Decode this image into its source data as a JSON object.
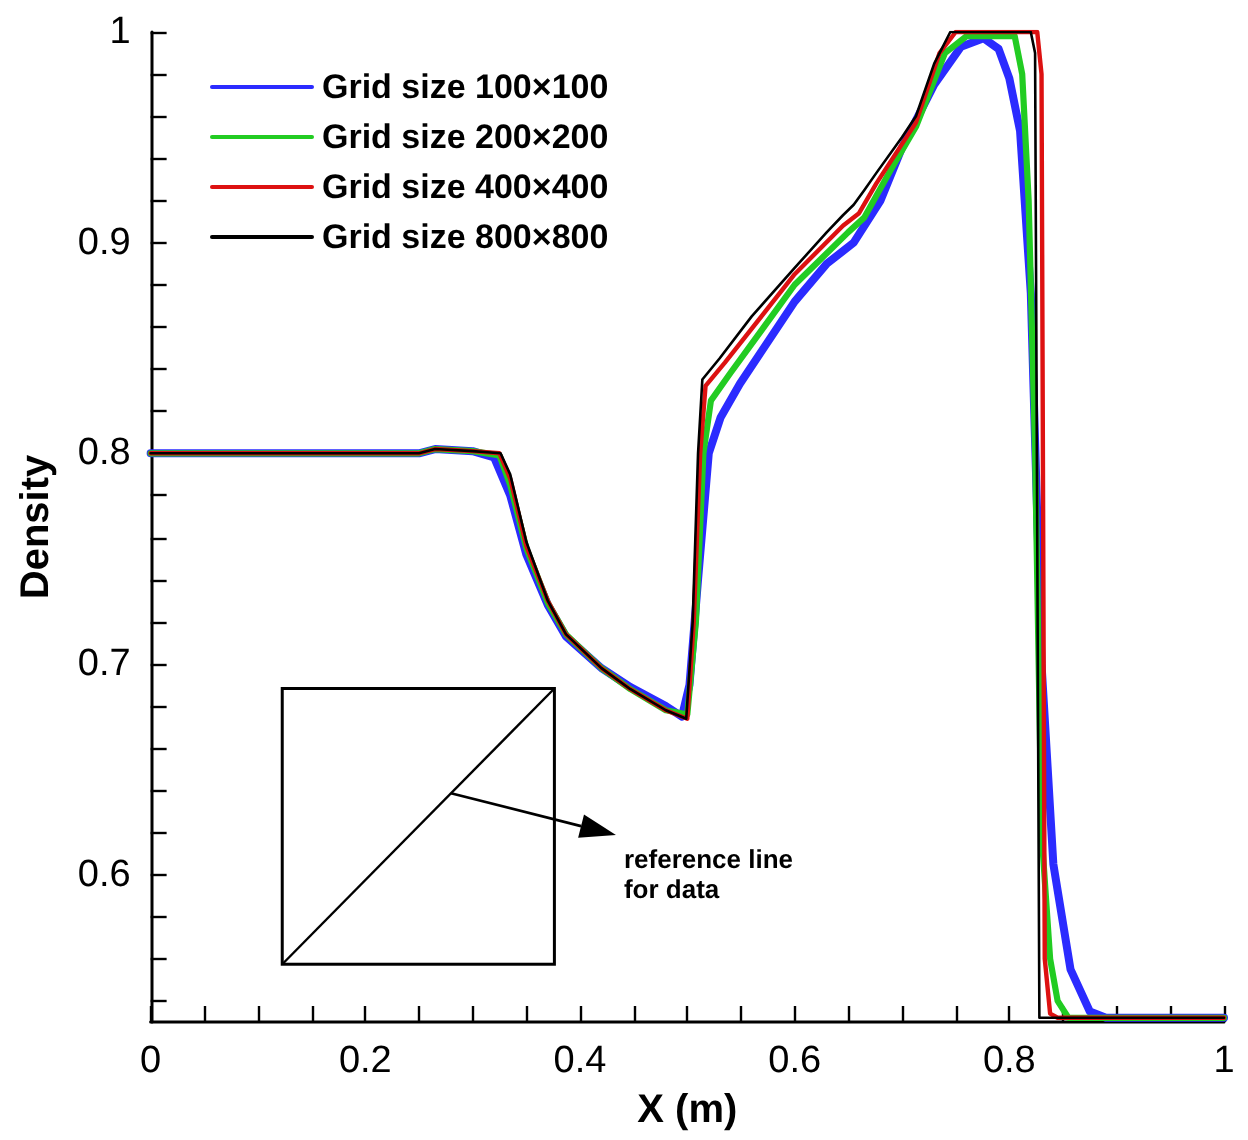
{
  "chart_data": {
    "type": "line",
    "xlabel": "X (m)",
    "ylabel": "Density",
    "annotations": [
      "reference line for data"
    ],
    "xlim": [
      0,
      1
    ],
    "xticks": [
      0,
      {
        "value": 0.05,
        "label": null
      },
      {
        "value": 0.1,
        "label": null
      },
      {
        "value": 0.15,
        "label": null
      },
      0.2,
      {
        "value": 0.25,
        "label": null
      },
      {
        "value": 0.3,
        "label": null
      },
      {
        "value": 0.35,
        "label": null
      },
      0.4,
      {
        "value": 0.45,
        "label": null
      },
      {
        "value": 0.5,
        "label": null
      },
      {
        "value": 0.55,
        "label": null
      },
      0.6,
      {
        "value": 0.65,
        "label": null
      },
      {
        "value": 0.7,
        "label": null
      },
      {
        "value": 0.75,
        "label": null
      },
      0.8,
      {
        "value": 0.85,
        "label": null
      },
      {
        "value": 0.9,
        "label": null
      },
      {
        "value": 0.95,
        "label": null
      },
      1
    ],
    "ylim": [
      0.53,
      1
    ],
    "yticks": [
      {
        "value": 0.54,
        "label": null
      },
      {
        "value": 0.56,
        "label": null
      },
      {
        "value": 0.58,
        "label": null
      },
      0.6,
      {
        "value": 0.62,
        "label": null
      },
      {
        "value": 0.64,
        "label": null
      },
      {
        "value": 0.66,
        "label": null
      },
      {
        "value": 0.68,
        "label": null
      },
      0.7,
      {
        "value": 0.72,
        "label": null
      },
      {
        "value": 0.74,
        "label": null
      },
      {
        "value": 0.76,
        "label": null
      },
      {
        "value": 0.78,
        "label": null
      },
      0.8,
      {
        "value": 0.82,
        "label": null
      },
      {
        "value": 0.84,
        "label": null
      },
      {
        "value": 0.86,
        "label": null
      },
      {
        "value": 0.88,
        "label": null
      },
      0.9,
      {
        "value": 0.92,
        "label": null
      },
      {
        "value": 0.94,
        "label": null
      },
      {
        "value": 0.96,
        "label": null
      },
      {
        "value": 0.98,
        "label": null
      },
      1
    ],
    "grid": false,
    "legend": "top left",
    "marker": "none",
    "line_style": "solid",
    "series": [
      {
        "name": "Grid size 100×100",
        "color": "#2b2bff",
        "x": [
          0,
          0.25,
          0.265,
          0.3,
          0.32,
          0.335,
          0.35,
          0.37,
          0.387,
          0.42,
          0.447,
          0.48,
          0.495,
          0.502,
          0.51,
          0.52,
          0.531,
          0.549,
          0.6,
          0.63,
          0.655,
          0.68,
          0.7,
          0.73,
          0.755,
          0.776,
          0.79,
          0.8,
          0.81,
          0.82,
          0.83,
          0.841,
          0.857,
          0.875,
          0.89,
          1
        ],
        "values": [
          0.8,
          0.8,
          0.802,
          0.801,
          0.798,
          0.78,
          0.752,
          0.728,
          0.713,
          0.698,
          0.689,
          0.68,
          0.675,
          0.69,
          0.74,
          0.8,
          0.817,
          0.833,
          0.872,
          0.89,
          0.9,
          0.92,
          0.945,
          0.975,
          0.993,
          0.997,
          0.992,
          0.978,
          0.953,
          0.876,
          0.7,
          0.605,
          0.555,
          0.535,
          0.532,
          0.532
        ]
      },
      {
        "name": "Grid size 200×200",
        "color": "#22cc22",
        "x": [
          0,
          0.25,
          0.265,
          0.3,
          0.325,
          0.335,
          0.35,
          0.37,
          0.387,
          0.42,
          0.447,
          0.48,
          0.5,
          0.508,
          0.515,
          0.522,
          0.54,
          0.6,
          0.65,
          0.665,
          0.69,
          0.713,
          0.74,
          0.76,
          0.805,
          0.812,
          0.818,
          0.824,
          0.83,
          0.838,
          0.845,
          0.855,
          1
        ],
        "values": [
          0.8,
          0.8,
          0.802,
          0.801,
          0.799,
          0.785,
          0.755,
          0.729,
          0.714,
          0.698,
          0.688,
          0.678,
          0.676,
          0.72,
          0.8,
          0.825,
          0.838,
          0.88,
          0.905,
          0.912,
          0.935,
          0.955,
          0.99,
          0.998,
          0.998,
          0.98,
          0.92,
          0.8,
          0.62,
          0.56,
          0.54,
          0.532,
          0.532
        ]
      },
      {
        "name": "Grid size 400×400",
        "color": "#dd1111",
        "x": [
          0,
          0.25,
          0.265,
          0.3,
          0.325,
          0.335,
          0.35,
          0.37,
          0.387,
          0.42,
          0.447,
          0.48,
          0.5,
          0.506,
          0.512,
          0.517,
          0.535,
          0.6,
          0.645,
          0.66,
          0.676,
          0.713,
          0.735,
          0.75,
          0.826,
          0.83,
          0.833,
          0.838,
          0.845,
          1
        ],
        "values": [
          0.8,
          0.8,
          0.802,
          0.801,
          0.8,
          0.788,
          0.756,
          0.73,
          0.714,
          0.698,
          0.688,
          0.678,
          0.674,
          0.72,
          0.8,
          0.832,
          0.843,
          0.885,
          0.908,
          0.914,
          0.928,
          0.957,
          0.99,
          1,
          1,
          0.98,
          0.56,
          0.534,
          0.532,
          0.532
        ]
      },
      {
        "name": "Grid size 800×800",
        "color": "#000000",
        "x": [
          0,
          0.25,
          0.265,
          0.3,
          0.326,
          0.335,
          0.35,
          0.37,
          0.387,
          0.42,
          0.447,
          0.48,
          0.499,
          0.505,
          0.51,
          0.514,
          0.53,
          0.56,
          0.6,
          0.63,
          0.645,
          0.655,
          0.665,
          0.676,
          0.7,
          0.713,
          0.73,
          0.745,
          0.82,
          0.824,
          0.828,
          1
        ],
        "values": [
          0.8,
          0.8,
          0.802,
          0.801,
          0.8,
          0.79,
          0.758,
          0.73,
          0.714,
          0.698,
          0.688,
          0.678,
          0.674,
          0.72,
          0.8,
          0.835,
          0.845,
          0.865,
          0.888,
          0.905,
          0.913,
          0.918,
          0.925,
          0.933,
          0.95,
          0.96,
          0.985,
          1,
          1,
          0.99,
          0.532,
          0.532
        ]
      }
    ]
  }
}
